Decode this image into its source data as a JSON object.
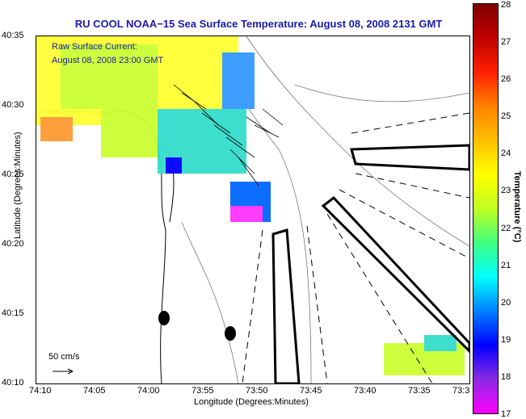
{
  "title": "RU COOL  NOAA−15  Sea Surface Temperature:  August 08, 2008 2131 GMT",
  "legend": {
    "line1": "Raw Surface Current:",
    "line2": "August 08, 2008 23:00 GMT"
  },
  "scale_label": "50 cm/s",
  "axes": {
    "xlabel": "Longitude (Degrees:Minutes)",
    "ylabel": "Latitude (Degrees:Minutes)",
    "xticks": [
      "74:10",
      "74:05",
      "74:00",
      "73:55",
      "73:50",
      "73:45",
      "73:40",
      "73:35",
      "73:3"
    ],
    "yticks": [
      "40:35",
      "40:30",
      "40:25",
      "40:20",
      "40:15",
      "40:10"
    ]
  },
  "colorbar": {
    "label": "Temperature (°C)",
    "ticks": [
      "28",
      "27",
      "26",
      "25",
      "24",
      "23",
      "22",
      "21",
      "20",
      "19",
      "18",
      "17"
    ],
    "colors": [
      "#ff00ff",
      "#8a2be2",
      "#0000ff",
      "#0080ff",
      "#00ffff",
      "#40ff80",
      "#c0ff20",
      "#ffff00",
      "#ffc000",
      "#ff8000",
      "#ff2000",
      "#c00000",
      "#800000"
    ]
  }
}
